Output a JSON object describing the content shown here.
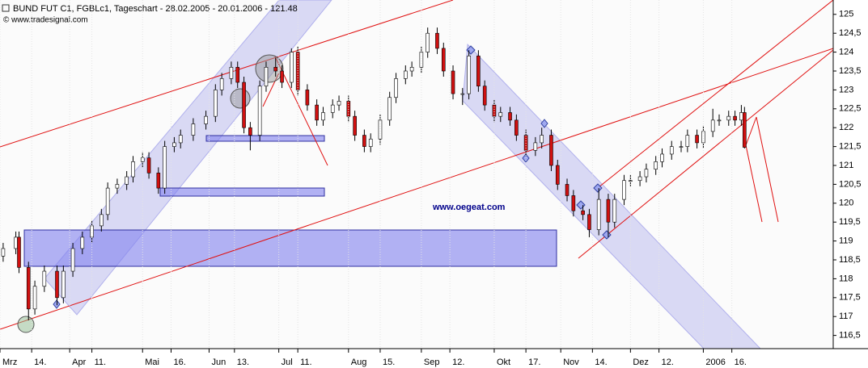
{
  "chart_data": {
    "type": "candlestick",
    "title": "BUND FUT C1, FGBLc1, Tageschart - 28.02.2005 - 20.01.2006 - 121.48",
    "subtitle": "© www.tradesignal.com",
    "annotation": "www.oegeat.com",
    "up_color": "#ffffff",
    "down_color": "#d01010",
    "xlim": [
      0,
      263
    ],
    "ylim": [
      116.15,
      125.38
    ],
    "yticks": [
      {
        "value": 116.5,
        "label": "116,5"
      },
      117,
      {
        "value": 117.5,
        "label": "117,5"
      },
      118,
      {
        "value": 118.5,
        "label": "118,5"
      },
      119,
      {
        "value": 119.5,
        "label": "119,5"
      },
      120,
      {
        "value": 120.5,
        "label": "120,5"
      },
      121,
      {
        "value": 121.5,
        "label": "121,5"
      },
      122,
      {
        "value": 122.5,
        "label": "122,5"
      },
      123,
      {
        "value": 123.5,
        "label": "123,5"
      },
      124,
      {
        "value": 124.5,
        "label": "124,5"
      },
      125
    ],
    "xticks": [
      {
        "value": 0,
        "label": "Mrz"
      },
      {
        "value": 10,
        "label": "14."
      },
      {
        "value": 22,
        "label": "Apr"
      },
      {
        "value": 29,
        "label": "11."
      },
      {
        "value": 45,
        "label": "Mai"
      },
      {
        "value": 54,
        "label": "16."
      },
      {
        "value": 66,
        "label": "Jun"
      },
      {
        "value": 74,
        "label": "13."
      },
      {
        "value": 88,
        "label": "Jul"
      },
      {
        "value": 94,
        "label": "11."
      },
      {
        "value": 110,
        "label": "Aug"
      },
      {
        "value": 120,
        "label": "15."
      },
      {
        "value": 133,
        "label": "Sep"
      },
      {
        "value": 142,
        "label": "12."
      },
      {
        "value": 156,
        "label": "Okt"
      },
      {
        "value": 166,
        "label": "17."
      },
      {
        "value": 177,
        "label": "Nov"
      },
      {
        "value": 187,
        "label": "14."
      },
      {
        "value": 199,
        "label": "Dez"
      },
      {
        "value": 208,
        "label": "12."
      },
      {
        "value": 222,
        "label": "2006"
      },
      {
        "value": 231,
        "label": "16."
      }
    ],
    "x": [
      1,
      5,
      6,
      9,
      11,
      14,
      18,
      20,
      23,
      26,
      29,
      32,
      34,
      37,
      40,
      42,
      45,
      47,
      50,
      52,
      55,
      57,
      61,
      65,
      68,
      70,
      73,
      75,
      77,
      79,
      82,
      84,
      87,
      89,
      92,
      94,
      97,
      100,
      102,
      105,
      107,
      110,
      112,
      115,
      117,
      120,
      123,
      125,
      128,
      130,
      133,
      135,
      138,
      140,
      143,
      146,
      148,
      151,
      153,
      156,
      158,
      161,
      163,
      166,
      169,
      171,
      174,
      176,
      179,
      181,
      184,
      186,
      189,
      192,
      194,
      197,
      199,
      202,
      204,
      207,
      209,
      212,
      215,
      217,
      220,
      222,
      225,
      227,
      230,
      232,
      234,
      235
    ],
    "open": [
      118.6,
      118.8,
      119.1,
      118.3,
      117.2,
      117.8,
      118.2,
      117.5,
      118.2,
      118.8,
      119.1,
      119.4,
      119.7,
      120.4,
      120.5,
      120.7,
      121.1,
      121.2,
      120.8,
      120.4,
      121.5,
      121.6,
      121.8,
      122.1,
      122.3,
      123.0,
      123.3,
      123.6,
      123.2,
      122.0,
      121.8,
      123.1,
      123.6,
      123.5,
      123.2,
      124.0,
      123.0,
      122.6,
      122.2,
      122.4,
      122.6,
      122.7,
      122.3,
      121.8,
      121.5,
      121.7,
      122.2,
      122.8,
      123.3,
      123.5,
      123.6,
      124.0,
      124.5,
      124.1,
      123.5,
      122.9,
      122.9,
      123.9,
      123.1,
      122.6,
      122.3,
      122.4,
      122.2,
      121.8,
      121.4,
      121.6,
      121.8,
      121.0,
      120.5,
      120.2,
      119.8,
      119.7,
      119.3,
      120.1,
      119.5,
      120.1,
      120.6,
      120.6,
      120.7,
      120.9,
      121.1,
      121.3,
      121.5,
      121.5,
      121.8,
      121.6,
      121.9,
      122.2,
      122.2,
      122.3,
      122.2,
      122.4
    ],
    "high": [
      118.95,
      119.25,
      119.25,
      118.45,
      117.95,
      118.35,
      118.35,
      118.35,
      118.95,
      119.25,
      119.55,
      119.85,
      120.55,
      120.65,
      120.85,
      121.25,
      121.35,
      121.35,
      120.95,
      121.65,
      121.75,
      121.95,
      122.25,
      122.45,
      123.15,
      123.45,
      123.75,
      123.75,
      123.35,
      122.15,
      123.25,
      123.75,
      123.85,
      123.65,
      124.1,
      124.15,
      123.15,
      122.75,
      122.55,
      122.75,
      122.85,
      122.85,
      122.45,
      121.95,
      121.85,
      122.35,
      122.95,
      123.45,
      123.65,
      123.75,
      124.15,
      124.65,
      124.65,
      124.25,
      123.65,
      123.05,
      124.05,
      124.05,
      123.25,
      122.75,
      122.55,
      122.55,
      122.35,
      121.95,
      121.75,
      122.0,
      121.95,
      121.15,
      120.65,
      120.35,
      119.95,
      119.85,
      120.4,
      120.25,
      120.25,
      120.75,
      120.75,
      120.85,
      121.05,
      121.25,
      121.45,
      121.65,
      121.65,
      121.95,
      121.95,
      122.05,
      122.5,
      122.35,
      122.45,
      122.45,
      122.6,
      122.55
    ],
    "low": [
      118.45,
      118.65,
      118.15,
      116.9,
      117.05,
      117.65,
      117.3,
      117.35,
      118.05,
      118.65,
      118.95,
      119.25,
      119.55,
      120.25,
      120.35,
      120.55,
      120.95,
      120.65,
      120.25,
      120.25,
      121.35,
      121.45,
      121.65,
      121.95,
      122.15,
      122.85,
      123.15,
      123.05,
      121.85,
      121.4,
      121.65,
      122.95,
      123.35,
      123.05,
      123.05,
      122.85,
      122.45,
      122.05,
      122.05,
      122.25,
      122.45,
      122.15,
      121.65,
      121.35,
      121.35,
      121.55,
      122.05,
      122.65,
      123.15,
      123.35,
      123.45,
      123.85,
      123.95,
      123.35,
      122.75,
      122.6,
      122.75,
      122.95,
      122.45,
      122.15,
      122.15,
      122.05,
      121.65,
      121.25,
      121.25,
      121.45,
      120.85,
      120.35,
      120.05,
      119.65,
      119.55,
      119.1,
      119.15,
      119.1,
      119.35,
      119.95,
      120.45,
      120.45,
      120.55,
      120.75,
      120.95,
      121.15,
      121.35,
      121.35,
      121.45,
      121.45,
      121.75,
      122.05,
      122.05,
      122.05,
      122.05,
      121.45
    ],
    "close": [
      118.8,
      119.1,
      118.3,
      117.2,
      117.8,
      118.2,
      117.5,
      118.2,
      118.8,
      119.1,
      119.4,
      119.7,
      120.4,
      120.5,
      120.7,
      121.1,
      121.2,
      120.8,
      120.4,
      121.5,
      121.6,
      121.8,
      122.1,
      122.3,
      123.0,
      123.3,
      123.6,
      123.2,
      122.0,
      121.8,
      123.1,
      123.6,
      123.5,
      123.2,
      124.0,
      123.0,
      122.6,
      122.2,
      122.4,
      122.6,
      122.7,
      122.3,
      121.8,
      121.5,
      121.7,
      122.2,
      122.8,
      123.3,
      123.5,
      123.6,
      124.0,
      124.5,
      124.1,
      123.5,
      122.9,
      122.9,
      123.9,
      123.1,
      122.6,
      122.3,
      122.4,
      122.2,
      121.8,
      121.4,
      121.6,
      121.8,
      121.0,
      120.5,
      120.2,
      119.8,
      119.7,
      119.3,
      120.1,
      119.5,
      120.1,
      120.6,
      120.6,
      120.7,
      120.9,
      121.1,
      121.3,
      121.5,
      121.5,
      121.8,
      121.6,
      121.9,
      122.2,
      122.2,
      122.3,
      122.2,
      122.4,
      121.48
    ]
  }
}
